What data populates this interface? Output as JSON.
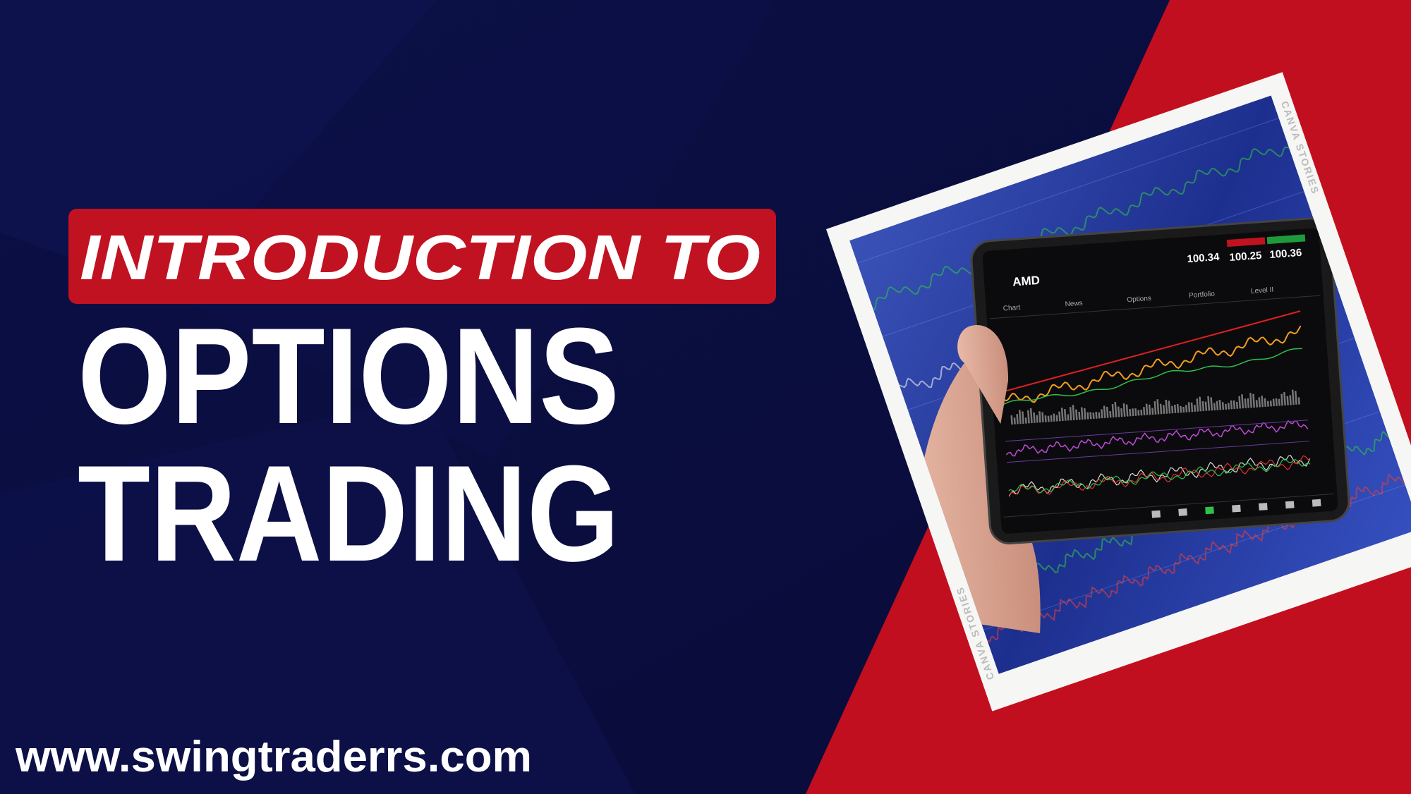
{
  "banner": "INTRODUCTION TO",
  "headline": [
    "OPTIONS",
    "TRADING"
  ],
  "website": "www.swingtraderrs.com",
  "photo": {
    "watermark": "CANVA STORIES",
    "ticker": "AMD",
    "prices": [
      "100.34",
      "100.25",
      "100.36"
    ],
    "tabs": [
      "Chart",
      "News",
      "Options",
      "Portfolio",
      "Level II"
    ]
  }
}
